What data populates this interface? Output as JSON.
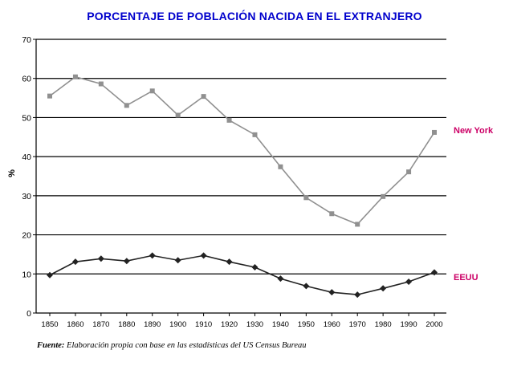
{
  "chart_data": {
    "type": "line",
    "title": "PORCENTAJE DE POBLACIÓN NACIDA EN EL EXTRANJERO",
    "xlabel": "",
    "ylabel": "%",
    "ylim": [
      0,
      70
    ],
    "yticks": [
      "0",
      "10",
      "20",
      "30",
      "40",
      "50",
      "60",
      "70"
    ],
    "grid": true,
    "categories": [
      "1850",
      "1860",
      "1870",
      "1880",
      "1890",
      "1900",
      "1910",
      "1920",
      "1930",
      "1940",
      "1950",
      "1960",
      "1970",
      "1980",
      "1990",
      "2000"
    ],
    "series": [
      {
        "name": "New York",
        "color": "#909090",
        "marker": "square",
        "values": [
          55.5,
          60.4,
          58.6,
          53.1,
          56.8,
          50.6,
          55.4,
          49.3,
          45.6,
          37.4,
          29.5,
          25.4,
          22.7,
          29.8,
          36.1,
          46.2
        ]
      },
      {
        "name": "EEUU",
        "color": "#222222",
        "marker": "diamond",
        "values": [
          9.7,
          13.1,
          13.9,
          13.3,
          14.7,
          13.5,
          14.7,
          13.1,
          11.7,
          8.8,
          6.9,
          5.3,
          4.7,
          6.3,
          8.0,
          10.4
        ]
      }
    ],
    "series_label_color": "#cc0066",
    "title_color": "#0000cc"
  },
  "source": {
    "label": "Fuente:",
    "text": "Elaboración propia con base en las estadísticas del US Census Bureau"
  }
}
